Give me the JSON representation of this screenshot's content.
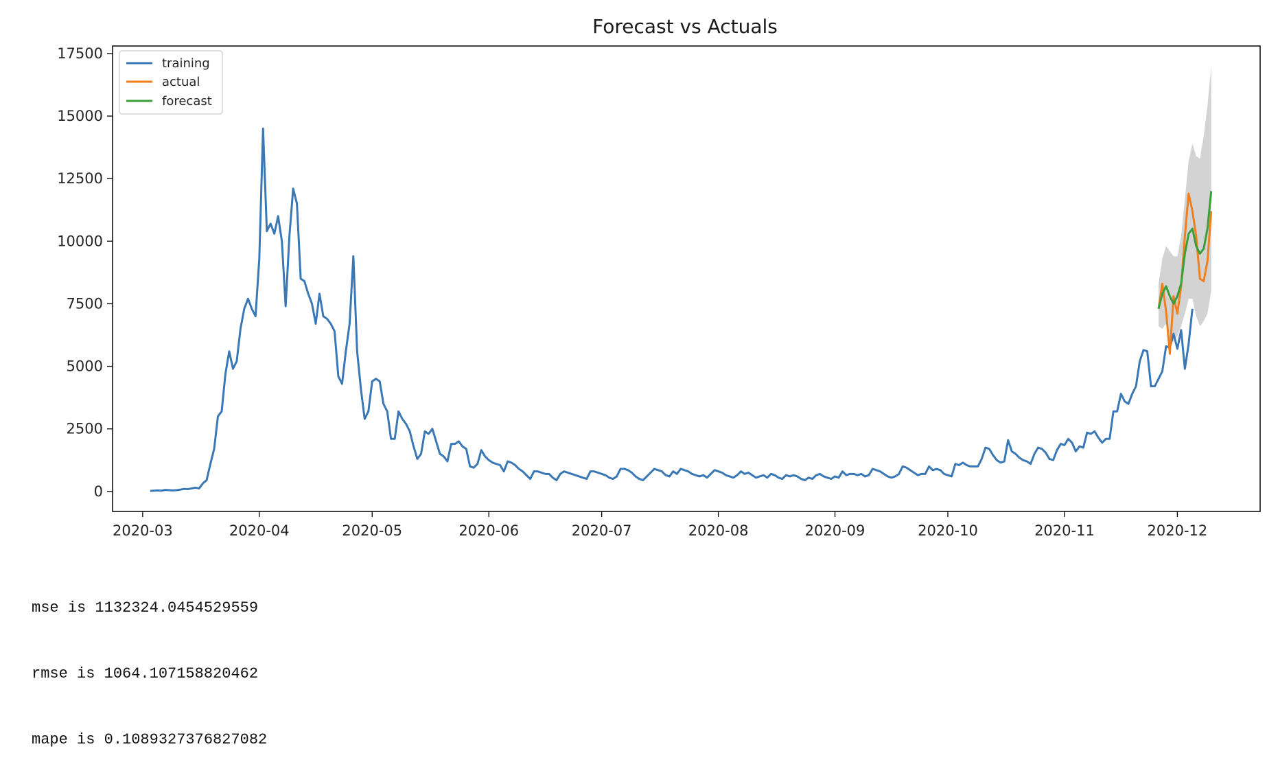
{
  "chart_data": {
    "type": "line",
    "title": "Forecast vs Actuals",
    "xlabel": "",
    "ylabel": "",
    "x_start": "2020-03-03",
    "xlim": [
      "2020-02-22",
      "2020-12-23"
    ],
    "ylim": [
      -800,
      17800
    ],
    "x_ticks": [
      "2020-03",
      "2020-04",
      "2020-05",
      "2020-06",
      "2020-07",
      "2020-08",
      "2020-09",
      "2020-10",
      "2020-11",
      "2020-12"
    ],
    "y_ticks": [
      0,
      2500,
      5000,
      7500,
      10000,
      12500,
      15000,
      17500
    ],
    "y_tick_labels": [
      "0",
      "2500",
      "5000",
      "7500",
      "10000",
      "12500",
      "15000",
      "17500"
    ],
    "legend": {
      "position": "top-left",
      "entries": [
        "training",
        "actual",
        "forecast"
      ]
    },
    "grid": false,
    "series": [
      {
        "name": "training",
        "color": "#3a78b5",
        "start": "2020-03-03",
        "values": [
          20,
          30,
          40,
          30,
          60,
          50,
          40,
          50,
          70,
          100,
          90,
          120,
          150,
          120,
          320,
          450,
          1100,
          1700,
          3000,
          3200,
          4700,
          5600,
          4900,
          5200,
          6500,
          7300,
          7700,
          7300,
          7000,
          9300,
          14500,
          10400,
          10700,
          10300,
          11000,
          10000,
          7400,
          10200,
          12100,
          11500,
          8500,
          8400,
          7900,
          7500,
          6700,
          7900,
          7000,
          6900,
          6700,
          6400,
          4600,
          4300,
          5600,
          6700,
          9400,
          5600,
          4100,
          2900,
          3200,
          4400,
          4500,
          4400,
          3500,
          3200,
          2100,
          2100,
          3200,
          2900,
          2700,
          2400,
          1800,
          1300,
          1500,
          2400,
          2300,
          2500,
          2000,
          1500,
          1400,
          1200,
          1900,
          1900,
          2000,
          1800,
          1700,
          1000,
          950,
          1100,
          1650,
          1400,
          1250,
          1150,
          1100,
          1050,
          800,
          1200,
          1150,
          1050,
          900,
          800,
          650,
          500,
          800,
          800,
          750,
          700,
          700,
          550,
          450,
          700,
          800,
          750,
          700,
          650,
          600,
          550,
          500,
          800,
          800,
          750,
          700,
          650,
          550,
          500,
          600,
          900,
          900,
          850,
          750,
          600,
          500,
          450,
          600,
          750,
          900,
          850,
          800,
          650,
          600,
          800,
          700,
          900,
          850,
          800,
          700,
          650,
          600,
          650,
          550,
          700,
          850,
          800,
          750,
          650,
          600,
          550,
          650,
          800,
          700,
          750,
          650,
          550,
          600,
          650,
          550,
          700,
          650,
          550,
          500,
          650,
          600,
          650,
          600,
          500,
          450,
          550,
          500,
          650,
          700,
          600,
          550,
          500,
          600,
          550,
          800,
          650,
          700,
          700,
          650,
          700,
          600,
          650,
          900,
          850,
          800,
          700,
          600,
          550,
          600,
          700,
          1000,
          950,
          850,
          750,
          650,
          700,
          700,
          1000,
          850,
          900,
          850,
          700,
          650,
          600,
          1100,
          1050,
          1150,
          1050,
          1000,
          1000,
          1000,
          1300,
          1750,
          1700,
          1450,
          1250,
          1150,
          1200,
          2050,
          1600,
          1500,
          1350,
          1250,
          1200,
          1100,
          1500,
          1750,
          1700,
          1550,
          1300,
          1250,
          1650,
          1900,
          1850,
          2100,
          1950,
          1600,
          1800,
          1750,
          2350,
          2300,
          2400,
          2150,
          1950,
          2100,
          2100,
          3200,
          3200,
          3900,
          3600,
          3500,
          3900,
          4200,
          5200,
          5650,
          5600,
          4200,
          4200,
          4500,
          4800,
          5800,
          5750,
          6300,
          5700,
          6450,
          4900,
          5900,
          7300
        ]
      },
      {
        "name": "actual",
        "color": "#f07f1e",
        "start": "2020-11-26",
        "values": [
          7300,
          8300,
          7200,
          5500,
          7800,
          7100,
          8200,
          10200,
          11900,
          11200,
          10200,
          8500,
          8400,
          9200,
          11200
        ]
      },
      {
        "name": "forecast",
        "color": "#3c9e3a",
        "start": "2020-11-26",
        "values": [
          7300,
          7900,
          8200,
          7800,
          7500,
          7800,
          8300,
          9500,
          10300,
          10500,
          9800,
          9500,
          9700,
          10500,
          12000
        ]
      }
    ],
    "band": {
      "color": "#d3d3d3",
      "start": "2020-11-26",
      "lower": [
        6600,
        6500,
        6700,
        5900,
        6000,
        6200,
        6600,
        7100,
        7700,
        7700,
        7000,
        6600,
        6800,
        7100,
        8000
      ],
      "upper": [
        8300,
        9300,
        9800,
        9600,
        9400,
        9400,
        10200,
        11700,
        13200,
        13900,
        13400,
        13300,
        14200,
        15400,
        17000
      ]
    }
  },
  "output_lines": [
    "mse is 1132324.0454529559",
    "rmse is 1064.107158820462",
    "mape is 0.1089327376827082"
  ]
}
